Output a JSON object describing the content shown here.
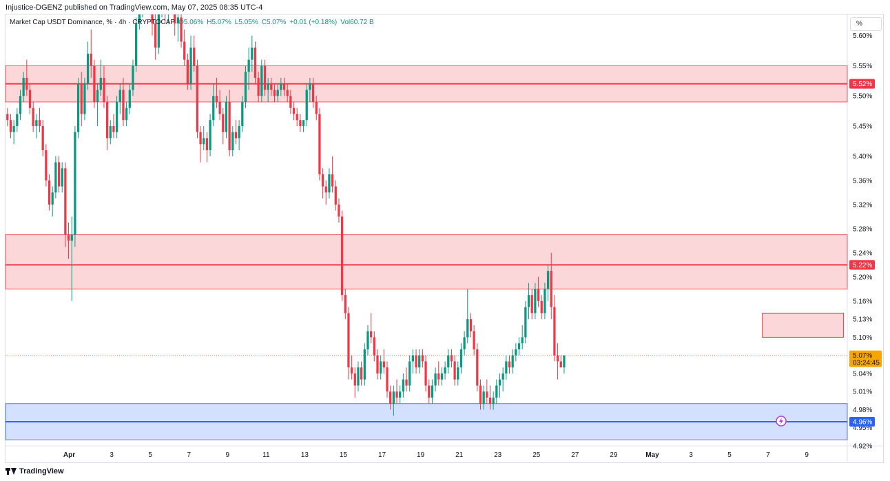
{
  "header": {
    "publisher": "Injustice-DGENZ published on TradingView.com, May 07, 2025 08:35 UTC-4"
  },
  "legend": {
    "symbol": "Market Cap USDT Dominance, % · 4h · CRYPTOCAP",
    "open": "O5.06%",
    "high": "H5.07%",
    "low": "L5.05%",
    "close": "C5.07%",
    "change": "+0.01 (+0.18%)",
    "volume": "Vol60.72 B"
  },
  "scale_button": "%",
  "footer": {
    "brand": "TradingView"
  },
  "colors": {
    "up": "#089981",
    "down": "#f23645",
    "resistance": "#f23645",
    "support": "#2962ff"
  },
  "chart_data": {
    "type": "candlestick",
    "ylim": [
      4.92,
      5.635
    ],
    "y_ticks": [
      5.6,
      5.55,
      5.5,
      5.45,
      5.4,
      5.36,
      5.32,
      5.28,
      5.24,
      5.2,
      5.16,
      5.13,
      5.1,
      5.04,
      5.01,
      4.98,
      4.95,
      4.92
    ],
    "y_tick_labels": [
      "5.60%",
      "5.55%",
      "5.50%",
      "5.45%",
      "5.40%",
      "5.36%",
      "5.32%",
      "5.28%",
      "5.24%",
      "5.20%",
      "5.16%",
      "5.13%",
      "5.10%",
      "5.04%",
      "5.01%",
      "4.98%",
      "4.95%",
      "4.92%"
    ],
    "x_range": [
      0,
      43.6
    ],
    "x_ticks": [
      {
        "day": 3.3,
        "label": "Apr"
      },
      {
        "day": 5.5,
        "label": "3"
      },
      {
        "day": 7.5,
        "label": "5"
      },
      {
        "day": 9.5,
        "label": "7"
      },
      {
        "day": 11.5,
        "label": "9"
      },
      {
        "day": 13.5,
        "label": "11"
      },
      {
        "day": 15.5,
        "label": "13"
      },
      {
        "day": 17.5,
        "label": "15"
      },
      {
        "day": 19.5,
        "label": "17"
      },
      {
        "day": 21.5,
        "label": "19"
      },
      {
        "day": 23.5,
        "label": "21"
      },
      {
        "day": 25.5,
        "label": "23"
      },
      {
        "day": 27.5,
        "label": "25"
      },
      {
        "day": 29.5,
        "label": "27"
      },
      {
        "day": 31.5,
        "label": "29"
      },
      {
        "day": 33.5,
        "label": "May"
      },
      {
        "day": 35.5,
        "label": "3"
      },
      {
        "day": 37.5,
        "label": "5"
      },
      {
        "day": 39.5,
        "label": "7"
      },
      {
        "day": 41.5,
        "label": "9"
      }
    ],
    "bars_per_day": 6,
    "start_day": 0.1,
    "candles": [
      [
        5.47,
        5.48,
        5.45,
        5.46
      ],
      [
        5.46,
        5.47,
        5.43,
        5.44
      ],
      [
        5.44,
        5.46,
        5.42,
        5.45
      ],
      [
        5.45,
        5.48,
        5.44,
        5.47
      ],
      [
        5.47,
        5.51,
        5.46,
        5.5
      ],
      [
        5.5,
        5.54,
        5.49,
        5.53
      ],
      [
        5.53,
        5.56,
        5.5,
        5.51
      ],
      [
        5.51,
        5.52,
        5.47,
        5.48
      ],
      [
        5.48,
        5.49,
        5.44,
        5.45
      ],
      [
        5.45,
        5.47,
        5.43,
        5.46
      ],
      [
        5.46,
        5.48,
        5.44,
        5.45
      ],
      [
        5.45,
        5.46,
        5.4,
        5.41
      ],
      [
        5.41,
        5.42,
        5.35,
        5.36
      ],
      [
        5.36,
        5.37,
        5.31,
        5.32
      ],
      [
        5.32,
        5.35,
        5.3,
        5.34
      ],
      [
        5.34,
        5.4,
        5.33,
        5.39
      ],
      [
        5.39,
        5.4,
        5.34,
        5.35
      ],
      [
        5.35,
        5.39,
        5.34,
        5.38
      ],
      [
        5.38,
        5.39,
        5.25,
        5.27
      ],
      [
        5.27,
        5.29,
        5.23,
        5.26
      ],
      [
        5.26,
        5.3,
        5.16,
        5.27
      ],
      [
        5.27,
        5.45,
        5.25,
        5.44
      ],
      [
        5.44,
        5.53,
        5.43,
        5.52
      ],
      [
        5.52,
        5.54,
        5.45,
        5.47
      ],
      [
        5.47,
        5.53,
        5.46,
        5.52
      ],
      [
        5.52,
        5.59,
        5.51,
        5.57
      ],
      [
        5.57,
        5.61,
        5.53,
        5.55
      ],
      [
        5.55,
        5.56,
        5.48,
        5.49
      ],
      [
        5.49,
        5.52,
        5.45,
        5.51
      ],
      [
        5.51,
        5.56,
        5.5,
        5.53
      ],
      [
        5.53,
        5.55,
        5.48,
        5.49
      ],
      [
        5.49,
        5.5,
        5.41,
        5.43
      ],
      [
        5.43,
        5.46,
        5.42,
        5.45
      ],
      [
        5.45,
        5.47,
        5.43,
        5.44
      ],
      [
        5.44,
        5.5,
        5.43,
        5.49
      ],
      [
        5.49,
        5.52,
        5.47,
        5.51
      ],
      [
        5.51,
        5.53,
        5.45,
        5.46
      ],
      [
        5.46,
        5.49,
        5.45,
        5.48
      ],
      [
        5.48,
        5.52,
        5.47,
        5.51
      ],
      [
        5.51,
        5.56,
        5.5,
        5.55
      ],
      [
        5.55,
        5.63,
        5.54,
        5.62
      ],
      [
        5.62,
        5.66,
        5.61,
        5.65
      ],
      [
        5.65,
        5.7,
        5.63,
        5.68
      ],
      [
        5.68,
        5.72,
        5.66,
        5.7
      ],
      [
        5.7,
        5.71,
        5.64,
        5.66
      ],
      [
        5.66,
        5.68,
        5.6,
        5.62
      ],
      [
        5.62,
        5.64,
        5.56,
        5.58
      ],
      [
        5.58,
        5.66,
        5.57,
        5.65
      ],
      [
        5.65,
        5.7,
        5.63,
        5.68
      ],
      [
        5.68,
        5.69,
        5.62,
        5.64
      ],
      [
        5.64,
        5.68,
        5.62,
        5.67
      ],
      [
        5.67,
        5.7,
        5.64,
        5.66
      ],
      [
        5.66,
        5.67,
        5.6,
        5.62
      ],
      [
        5.62,
        5.65,
        5.59,
        5.63
      ],
      [
        5.63,
        5.64,
        5.58,
        5.59
      ],
      [
        5.59,
        5.61,
        5.55,
        5.56
      ],
      [
        5.56,
        5.57,
        5.51,
        5.52
      ],
      [
        5.52,
        5.6,
        5.51,
        5.58
      ],
      [
        5.58,
        5.6,
        5.54,
        5.55
      ],
      [
        5.55,
        5.56,
        5.43,
        5.44
      ],
      [
        5.44,
        5.45,
        5.39,
        5.42
      ],
      [
        5.42,
        5.45,
        5.41,
        5.43
      ],
      [
        5.43,
        5.44,
        5.39,
        5.41
      ],
      [
        5.41,
        5.47,
        5.4,
        5.46
      ],
      [
        5.46,
        5.52,
        5.45,
        5.5
      ],
      [
        5.5,
        5.53,
        5.48,
        5.49
      ],
      [
        5.49,
        5.51,
        5.46,
        5.47
      ],
      [
        5.47,
        5.48,
        5.42,
        5.44
      ],
      [
        5.44,
        5.5,
        5.43,
        5.49
      ],
      [
        5.49,
        5.51,
        5.4,
        5.41
      ],
      [
        5.41,
        5.45,
        5.4,
        5.44
      ],
      [
        5.44,
        5.46,
        5.42,
        5.43
      ],
      [
        5.43,
        5.46,
        5.41,
        5.45
      ],
      [
        5.45,
        5.5,
        5.44,
        5.49
      ],
      [
        5.49,
        5.55,
        5.48,
        5.54
      ],
      [
        5.54,
        5.58,
        5.51,
        5.56
      ],
      [
        5.56,
        5.6,
        5.54,
        5.58
      ],
      [
        5.58,
        5.59,
        5.52,
        5.53
      ],
      [
        5.53,
        5.54,
        5.49,
        5.5
      ],
      [
        5.5,
        5.56,
        5.49,
        5.55
      ],
      [
        5.55,
        5.56,
        5.5,
        5.51
      ],
      [
        5.51,
        5.53,
        5.49,
        5.52
      ],
      [
        5.52,
        5.53,
        5.5,
        5.51
      ],
      [
        5.51,
        5.52,
        5.49,
        5.5
      ],
      [
        5.5,
        5.52,
        5.49,
        5.51
      ],
      [
        5.51,
        5.53,
        5.5,
        5.52
      ],
      [
        5.52,
        5.53,
        5.5,
        5.51
      ],
      [
        5.51,
        5.52,
        5.49,
        5.5
      ],
      [
        5.5,
        5.51,
        5.47,
        5.48
      ],
      [
        5.48,
        5.49,
        5.46,
        5.47
      ],
      [
        5.47,
        5.48,
        5.45,
        5.46
      ],
      [
        5.46,
        5.47,
        5.44,
        5.45
      ],
      [
        5.45,
        5.46,
        5.44,
        5.46
      ],
      [
        5.46,
        5.52,
        5.45,
        5.51
      ],
      [
        5.51,
        5.53,
        5.49,
        5.52
      ],
      [
        5.52,
        5.53,
        5.48,
        5.49
      ],
      [
        5.49,
        5.5,
        5.46,
        5.47
      ],
      [
        5.47,
        5.48,
        5.36,
        5.37
      ],
      [
        5.37,
        5.38,
        5.33,
        5.35
      ],
      [
        5.35,
        5.36,
        5.32,
        5.34
      ],
      [
        5.34,
        5.38,
        5.33,
        5.37
      ],
      [
        5.37,
        5.4,
        5.34,
        5.35
      ],
      [
        5.35,
        5.36,
        5.31,
        5.32
      ],
      [
        5.32,
        5.33,
        5.29,
        5.3
      ],
      [
        5.3,
        5.31,
        5.16,
        5.17
      ],
      [
        5.17,
        5.18,
        5.13,
        5.14
      ],
      [
        5.14,
        5.15,
        5.03,
        5.05
      ],
      [
        5.05,
        5.07,
        5.03,
        5.04
      ],
      [
        5.04,
        5.05,
        5.0,
        5.02
      ],
      [
        5.02,
        5.06,
        5.01,
        5.05
      ],
      [
        5.05,
        5.06,
        5.02,
        5.03
      ],
      [
        5.03,
        5.09,
        5.02,
        5.08
      ],
      [
        5.08,
        5.12,
        5.07,
        5.11
      ],
      [
        5.11,
        5.14,
        5.09,
        5.1
      ],
      [
        5.1,
        5.11,
        5.06,
        5.07
      ],
      [
        5.07,
        5.08,
        5.03,
        5.04
      ],
      [
        5.04,
        5.07,
        5.03,
        5.06
      ],
      [
        5.06,
        5.08,
        5.04,
        5.05
      ],
      [
        5.05,
        5.06,
        5.0,
        5.01
      ],
      [
        5.01,
        5.02,
        4.98,
        4.99
      ],
      [
        4.99,
        5.02,
        4.97,
        5.01
      ],
      [
        5.01,
        5.03,
        4.99,
        5.0
      ],
      [
        5.0,
        5.02,
        4.99,
        5.01
      ],
      [
        5.01,
        5.04,
        5.0,
        5.03
      ],
      [
        5.03,
        5.05,
        5.01,
        5.02
      ],
      [
        5.02,
        5.07,
        5.01,
        5.06
      ],
      [
        5.06,
        5.08,
        5.04,
        5.07
      ],
      [
        5.07,
        5.08,
        5.04,
        5.05
      ],
      [
        5.05,
        5.08,
        5.04,
        5.07
      ],
      [
        5.07,
        5.08,
        5.05,
        5.06
      ],
      [
        5.06,
        5.07,
        5.01,
        5.02
      ],
      [
        5.02,
        5.03,
        4.99,
        5.0
      ],
      [
        5.0,
        5.03,
        4.99,
        5.02
      ],
      [
        5.02,
        5.05,
        5.01,
        5.04
      ],
      [
        5.04,
        5.06,
        5.02,
        5.03
      ],
      [
        5.03,
        5.05,
        5.02,
        5.04
      ],
      [
        5.04,
        5.06,
        5.03,
        5.05
      ],
      [
        5.05,
        5.08,
        5.04,
        5.07
      ],
      [
        5.07,
        5.08,
        5.05,
        5.06
      ],
      [
        5.06,
        5.07,
        5.02,
        5.03
      ],
      [
        5.03,
        5.06,
        5.02,
        5.05
      ],
      [
        5.05,
        5.09,
        5.04,
        5.08
      ],
      [
        5.08,
        5.11,
        5.07,
        5.1
      ],
      [
        5.1,
        5.18,
        5.09,
        5.13
      ],
      [
        5.13,
        5.14,
        5.1,
        5.11
      ],
      [
        5.11,
        5.12,
        5.07,
        5.08
      ],
      [
        5.08,
        5.09,
        5.01,
        5.02
      ],
      [
        5.02,
        5.03,
        4.98,
        4.99
      ],
      [
        4.99,
        5.02,
        4.98,
        5.01
      ],
      [
        5.01,
        5.03,
        4.99,
        5.0
      ],
      [
        5.0,
        5.02,
        4.98,
        4.99
      ],
      [
        4.99,
        5.01,
        4.98,
        5.0
      ],
      [
        5.0,
        5.03,
        4.99,
        5.02
      ],
      [
        5.02,
        5.04,
        5.0,
        5.03
      ],
      [
        5.03,
        5.05,
        5.01,
        5.04
      ],
      [
        5.04,
        5.07,
        5.03,
        5.06
      ],
      [
        5.06,
        5.07,
        5.04,
        5.05
      ],
      [
        5.05,
        5.08,
        5.04,
        5.07
      ],
      [
        5.07,
        5.09,
        5.06,
        5.08
      ],
      [
        5.08,
        5.1,
        5.07,
        5.09
      ],
      [
        5.09,
        5.12,
        5.08,
        5.1
      ],
      [
        5.1,
        5.16,
        5.09,
        5.15
      ],
      [
        5.15,
        5.19,
        5.13,
        5.17
      ],
      [
        5.17,
        5.18,
        5.13,
        5.14
      ],
      [
        5.14,
        5.19,
        5.13,
        5.18
      ],
      [
        5.18,
        5.2,
        5.15,
        5.16
      ],
      [
        5.16,
        5.17,
        5.13,
        5.14
      ],
      [
        5.14,
        5.19,
        5.13,
        5.18
      ],
      [
        5.18,
        5.22,
        5.16,
        5.21
      ],
      [
        5.21,
        5.24,
        5.13,
        5.15
      ],
      [
        5.15,
        5.17,
        5.06,
        5.07
      ],
      [
        5.07,
        5.09,
        5.03,
        5.06
      ],
      [
        5.06,
        5.07,
        5.05,
        5.05
      ],
      [
        5.05,
        5.07,
        5.04,
        5.07
      ]
    ],
    "zones": [
      {
        "top": 5.55,
        "bottom": 5.49,
        "line": 5.52,
        "label": "5.52%",
        "color": "#f23645"
      },
      {
        "top": 5.27,
        "bottom": 5.18,
        "line": 5.22,
        "label": "5.22%",
        "color": "#f23645"
      },
      {
        "top": 4.99,
        "bottom": 4.93,
        "line": 4.96,
        "label": "4.96%",
        "color": "#2962ff"
      }
    ],
    "target_box": {
      "x0": 39.2,
      "x1": 43.4,
      "top": 5.14,
      "bottom": 5.1
    },
    "current_price": {
      "value": 5.07,
      "label": "5.07%",
      "countdown": "03:24:45",
      "color": "#f7a600"
    }
  }
}
